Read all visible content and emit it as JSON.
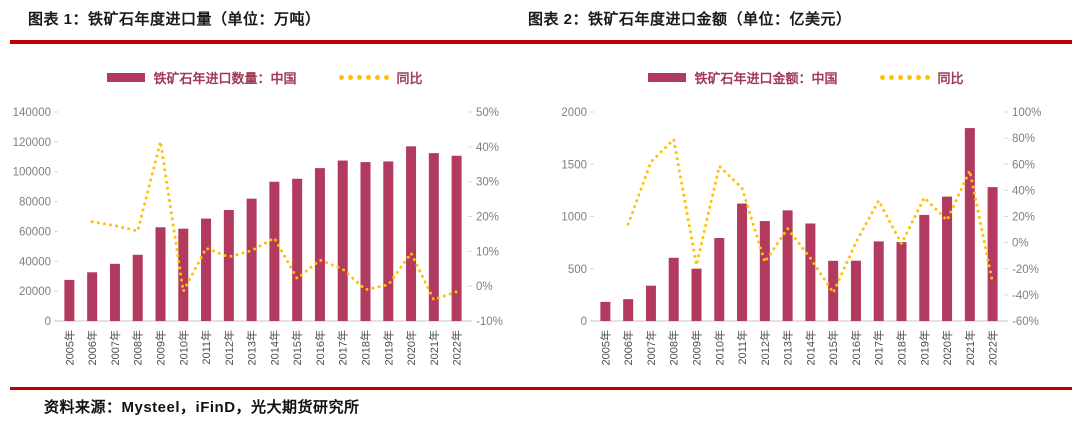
{
  "page": {
    "footer_source": "资料来源：Mysteel，iFinD，光大期货研究所"
  },
  "colors": {
    "bar": "#B23A5F",
    "line": "#FFC000",
    "rule": "#C00000",
    "legend_text": "#A13A55",
    "y_tick_text": "#808080",
    "x_tick_text": "#4D4D4D",
    "axis_line": "#D9D9D9"
  },
  "chart_data": [
    {
      "type": "bar+line",
      "title": "图表 1：铁矿石年度进口量（单位：万吨）",
      "legend_position": "top",
      "grid": false,
      "categories": [
        "2005年",
        "2006年",
        "2007年",
        "2008年",
        "2009年",
        "2010年",
        "2011年",
        "2012年",
        "2013年",
        "2014年",
        "2015年",
        "2016年",
        "2017年",
        "2018年",
        "2019年",
        "2020年",
        "2021年",
        "2022年"
      ],
      "bar_series": {
        "name": "铁矿石年进口数量：中国",
        "values": [
          27526,
          32630,
          38309,
          44356,
          62778,
          61864,
          68608,
          74355,
          81941,
          93251,
          95272,
          102412,
          107474,
          106447,
          106895,
          117010,
          112432,
          110686
        ]
      },
      "line_series": {
        "name": "同比",
        "axis": "right",
        "values": [
          null,
          18.5,
          17.4,
          15.8,
          41.5,
          -1.5,
          10.9,
          8.4,
          10.2,
          13.8,
          2.2,
          7.5,
          4.9,
          -1.0,
          0.4,
          9.5,
          -3.9,
          -1.6
        ]
      },
      "y_left": {
        "min": 0,
        "max": 140000,
        "step": 20000
      },
      "y_right": {
        "min": -10,
        "max": 50,
        "step": 10,
        "suffix": "%"
      },
      "y_left_ticks": [
        "140000",
        "120000",
        "100000",
        "80000",
        "60000",
        "40000",
        "20000",
        "0"
      ],
      "y_right_ticks": [
        "50%",
        "40%",
        "30%",
        "20%",
        "10%",
        "0%",
        "-10%"
      ]
    },
    {
      "type": "bar+line",
      "title": "图表 2：铁矿石年度进口金额（单位：亿美元）",
      "legend_position": "top",
      "grid": false,
      "categories": [
        "2005年",
        "2006年",
        "2007年",
        "2008年",
        "2009年",
        "2010年",
        "2011年",
        "2012年",
        "2013年",
        "2014年",
        "2015年",
        "2016年",
        "2017年",
        "2018年",
        "2019年",
        "2020年",
        "2021年",
        "2022年"
      ],
      "bar_series": {
        "name": "铁矿石年进口金额：中国",
        "values": [
          183,
          209,
          338,
          605,
          501,
          794,
          1124,
          956,
          1059,
          933,
          576,
          577,
          762,
          755,
          1015,
          1190,
          1846,
          1281
        ]
      },
      "line_series": {
        "name": "同比",
        "axis": "right",
        "values": [
          null,
          14.2,
          61.7,
          79.0,
          -17.2,
          58.5,
          41.6,
          -14.9,
          10.8,
          -11.9,
          -38.3,
          0.2,
          32.1,
          -0.9,
          34.4,
          17.2,
          55.1,
          -30.6
        ]
      },
      "y_left": {
        "min": 0,
        "max": 2000,
        "step": 500
      },
      "y_right": {
        "min": -60,
        "max": 100,
        "step": 20,
        "suffix": "%"
      },
      "y_left_ticks": [
        "2000",
        "1500",
        "1000",
        "500",
        "0"
      ],
      "y_right_ticks": [
        "100%",
        "80%",
        "60%",
        "40%",
        "20%",
        "0%",
        "-20%",
        "-40%",
        "-60%"
      ]
    }
  ]
}
